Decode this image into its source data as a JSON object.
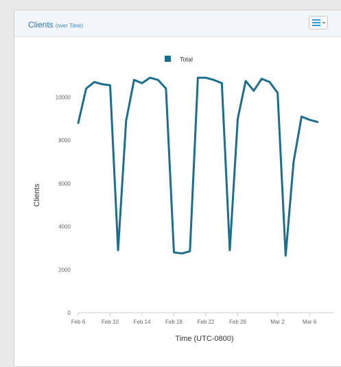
{
  "panel": {
    "title": "Clients",
    "subtitle": "(over Time)",
    "menu_icon": "hamburger-menu-icon",
    "menu_chevron_icon": "chevron-down-icon"
  },
  "colors": {
    "series": "#1c6e8c",
    "title": "#2a74a8",
    "menu_icon": "#2e9bd6"
  },
  "chart_data": {
    "type": "line",
    "title": "",
    "xlabel": "Time (UTC-0800)",
    "ylabel": "Clients",
    "legend_position": "top-center",
    "grid": false,
    "ylim": [
      0,
      11000
    ],
    "yticks": [
      0,
      2000,
      4000,
      6000,
      8000,
      10000
    ],
    "xlim": [
      "2024-02-06",
      "2024-03-09"
    ],
    "xticks": [
      {
        "date": "2024-02-06",
        "label": "Feb 6"
      },
      {
        "date": "2024-02-10",
        "label": "Feb 10"
      },
      {
        "date": "2024-02-14",
        "label": "Feb 14"
      },
      {
        "date": "2024-02-18",
        "label": "Feb 18"
      },
      {
        "date": "2024-02-22",
        "label": "Feb 22"
      },
      {
        "date": "2024-02-26",
        "label": "Feb 26"
      },
      {
        "date": "2024-03-02",
        "label": "Mar 2"
      },
      {
        "date": "2024-03-06",
        "label": "Mar 6"
      }
    ],
    "series": [
      {
        "name": "Total",
        "color": "#1c6e8c",
        "points": [
          {
            "x": "2024-02-06",
            "y": 8800
          },
          {
            "x": "2024-02-07",
            "y": 10400
          },
          {
            "x": "2024-02-08",
            "y": 10700
          },
          {
            "x": "2024-02-09",
            "y": 10600
          },
          {
            "x": "2024-02-10",
            "y": 10550
          },
          {
            "x": "2024-02-11",
            "y": 2900
          },
          {
            "x": "2024-02-12",
            "y": 8900
          },
          {
            "x": "2024-02-13",
            "y": 10800
          },
          {
            "x": "2024-02-14",
            "y": 10650
          },
          {
            "x": "2024-02-15",
            "y": 10900
          },
          {
            "x": "2024-02-16",
            "y": 10800
          },
          {
            "x": "2024-02-17",
            "y": 10400
          },
          {
            "x": "2024-02-18",
            "y": 2800
          },
          {
            "x": "2024-02-19",
            "y": 2750
          },
          {
            "x": "2024-02-20",
            "y": 2850
          },
          {
            "x": "2024-02-21",
            "y": 10900
          },
          {
            "x": "2024-02-22",
            "y": 10900
          },
          {
            "x": "2024-02-23",
            "y": 10800
          },
          {
            "x": "2024-02-24",
            "y": 10650
          },
          {
            "x": "2024-02-25",
            "y": 2900
          },
          {
            "x": "2024-02-26",
            "y": 9000
          },
          {
            "x": "2024-02-27",
            "y": 10750
          },
          {
            "x": "2024-02-28",
            "y": 10300
          },
          {
            "x": "2024-02-29",
            "y": 10850
          },
          {
            "x": "2024-03-01",
            "y": 10700
          },
          {
            "x": "2024-03-02",
            "y": 10200
          },
          {
            "x": "2024-03-03",
            "y": 2650
          },
          {
            "x": "2024-03-04",
            "y": 7000
          },
          {
            "x": "2024-03-05",
            "y": 9100
          },
          {
            "x": "2024-03-06",
            "y": 8950
          },
          {
            "x": "2024-03-07",
            "y": 8850
          }
        ]
      }
    ]
  }
}
